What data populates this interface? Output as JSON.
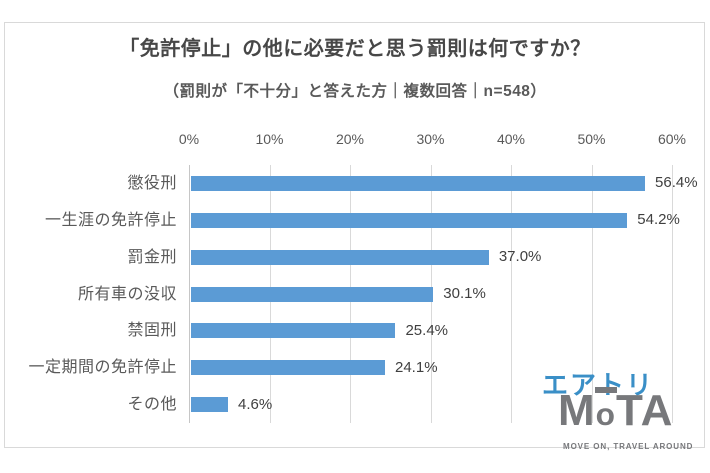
{
  "chart_data": {
    "type": "bar",
    "orientation": "horizontal",
    "title": "「免許停止」の他に必要だと思う罰則は何ですか？",
    "subtitle": "（罰則が「不十分」と答えた方｜複数回答｜n=548）",
    "categories": [
      "懲役刑",
      "一生涯の免許停止",
      "罰金刑",
      "所有車の没収",
      "禁固刑",
      "一定期間の免許停止",
      "その他"
    ],
    "values": [
      56.4,
      54.2,
      37.0,
      30.1,
      25.4,
      24.1,
      4.6
    ],
    "value_labels": [
      "56.4%",
      "54.2%",
      "37.0%",
      "30.1%",
      "25.4%",
      "24.1%",
      "4.6%"
    ],
    "x_tick_labels": [
      "0%",
      "10%",
      "20%",
      "30%",
      "40%",
      "50%",
      "60%"
    ],
    "xlim": [
      0,
      60
    ],
    "grid": true,
    "legend": false,
    "axis_position": "top",
    "bar_color": "#5b9bd5"
  },
  "logo": {
    "brand_top": "エアトリ",
    "brand_main": "MoTA",
    "tagline": "MOVE ON, TRAVEL AROUND",
    "colors": {
      "brand_top": "#3a8fc7",
      "brand_main": "#77787b"
    }
  }
}
